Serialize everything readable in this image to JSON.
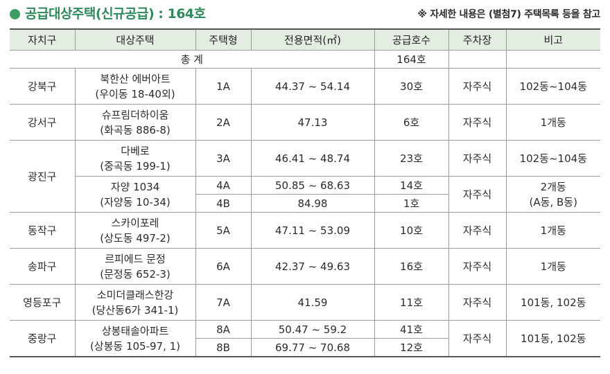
{
  "header": {
    "title": "공급대상주택(신규공급) : 164호",
    "note": "※ 자세한 내용은 (별첨7) 주택목록 등을 참고"
  },
  "table": {
    "columns": [
      "자치구",
      "대상주택",
      "주택형",
      "전용면적(㎡)",
      "공급호수",
      "주차장",
      "비고"
    ],
    "total": {
      "label": "총 계",
      "count": "164호"
    },
    "rows": {
      "gangbuk": {
        "district": "강북구",
        "house_name": "북한산 에버아트",
        "house_addr": "(우이동 18-40외)",
        "type": "1A",
        "area": "44.37 ~ 54.14",
        "units": "30호",
        "parking": "자주식",
        "note": "102동~104동"
      },
      "gangseo": {
        "district": "강서구",
        "house_name": "슈프림더하이움",
        "house_addr": "(화곡동 886-8)",
        "type": "2A",
        "area": "47.13",
        "units": "6호",
        "parking": "자주식",
        "note": "1개동"
      },
      "gwangjin": {
        "district": "광진구",
        "a": {
          "house_name": "다베로",
          "house_addr": "(중곡동 199-1)",
          "type": "3A",
          "area": "46.41 ~ 48.74",
          "units": "23호",
          "parking": "자주식",
          "note": "102동~104동"
        },
        "b": {
          "house_name": "자양 1034",
          "house_addr": "(자양동 10-34)",
          "parking": "자주식",
          "note_line1": "2개동",
          "note_line2": "(A동, B동)",
          "r1": {
            "type": "4A",
            "area": "50.85 ~ 68.63",
            "units": "14호"
          },
          "r2": {
            "type": "4B",
            "area": "84.98",
            "units": "1호"
          }
        }
      },
      "dongjak": {
        "district": "동작구",
        "house_name": "스카이포레",
        "house_addr": "(상도동 497-2)",
        "type": "5A",
        "area": "47.11 ~ 53.09",
        "units": "10호",
        "parking": "자주식",
        "note": "1개동"
      },
      "songpa": {
        "district": "송파구",
        "house_name": "르피에드 문정",
        "house_addr": "(문정동 652-3)",
        "type": "6A",
        "area": "42.37 ~ 49.63",
        "units": "16호",
        "parking": "자주식",
        "note": "1개동"
      },
      "yeongdeungpo": {
        "district": "영등포구",
        "house_name": "소미더클래스한강",
        "house_addr": "(당산동6가 341-1)",
        "type": "7A",
        "area": "41.59",
        "units": "11호",
        "parking": "자주식",
        "note": "101동, 102동"
      },
      "jungnang": {
        "district": "중랑구",
        "house_name": "상봉태솔아파트",
        "house_addr": "(상봉동 105-97, 1)",
        "parking": "자주식",
        "note": "101동, 102동",
        "r1": {
          "type": "8A",
          "area": "50.47 ~ 59.2",
          "units": "41호"
        },
        "r2": {
          "type": "8B",
          "area": "69.77 ~ 70.68",
          "units": "12호"
        }
      }
    }
  },
  "colors": {
    "accent": "#2f8a5b",
    "header_bg": "#e4ede2",
    "border": "#9a9a9a"
  }
}
